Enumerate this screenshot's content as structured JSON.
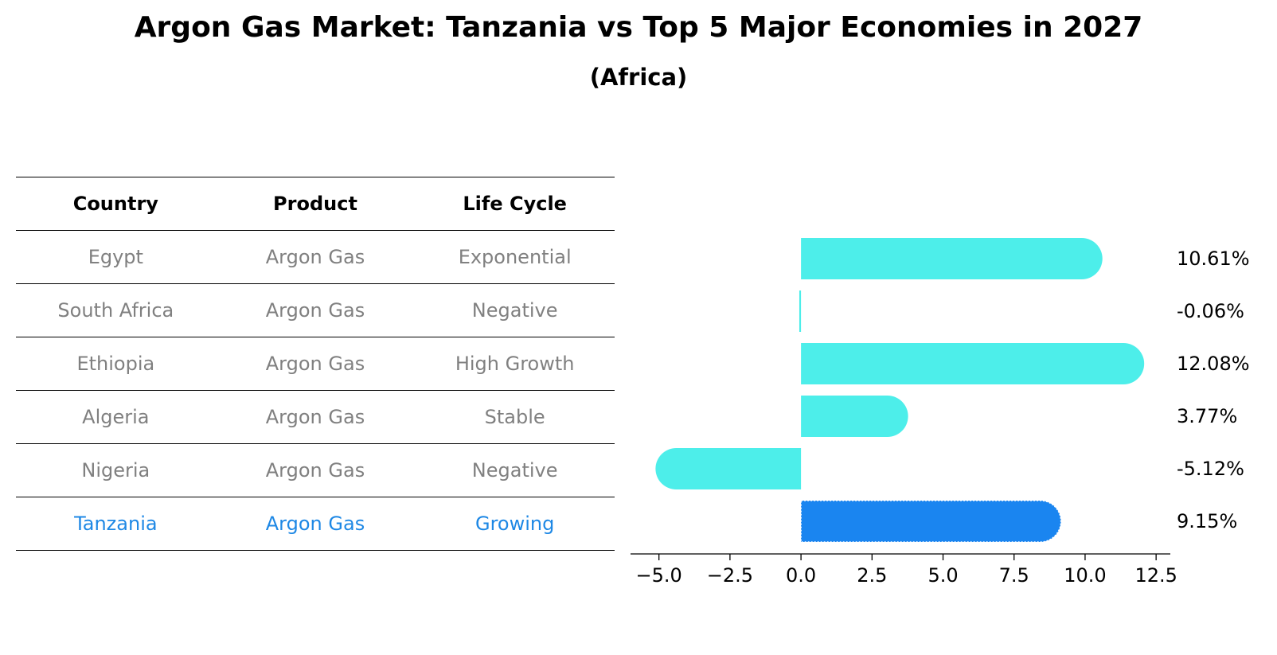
{
  "title": "Argon Gas Market: Tanzania vs Top 5 Major Economies in 2027",
  "subtitle": "(Africa)",
  "table": {
    "headers": [
      "Country",
      "Product",
      "Life Cycle"
    ],
    "rows": [
      [
        "Egypt",
        "Argon Gas",
        "Exponential"
      ],
      [
        "South Africa",
        "Argon Gas",
        "Negative"
      ],
      [
        "Ethiopia",
        "Argon Gas",
        "High Growth"
      ],
      [
        "Algeria",
        "Argon Gas",
        "Stable"
      ],
      [
        "Nigeria",
        "Argon Gas",
        "Negative"
      ],
      [
        "Tanzania",
        "Argon Gas",
        "Growing"
      ]
    ],
    "highlight_row": "Tanzania"
  },
  "colors": {
    "bar": "#4deeea",
    "highlight": "#1a85f0",
    "muted_text": "#808080",
    "highlight_text": "#1e88e5"
  },
  "chart_data": {
    "type": "bar",
    "orientation": "horizontal",
    "categories": [
      "Egypt",
      "South Africa",
      "Ethiopia",
      "Algeria",
      "Nigeria",
      "Tanzania"
    ],
    "values": [
      10.61,
      -0.06,
      12.08,
      3.77,
      -5.12,
      9.15
    ],
    "value_labels": [
      "10.61%",
      "-0.06%",
      "12.08%",
      "3.77%",
      "-5.12%",
      "9.15%"
    ],
    "highlight": "Tanzania",
    "xlim": [
      -6.0,
      13.0
    ],
    "xticks": [
      -5.0,
      -2.5,
      0.0,
      2.5,
      5.0,
      7.5,
      10.0,
      12.5
    ],
    "xtick_labels": [
      "−5.0",
      "−2.5",
      "0.0",
      "2.5",
      "5.0",
      "7.5",
      "10.0",
      "12.5"
    ]
  }
}
